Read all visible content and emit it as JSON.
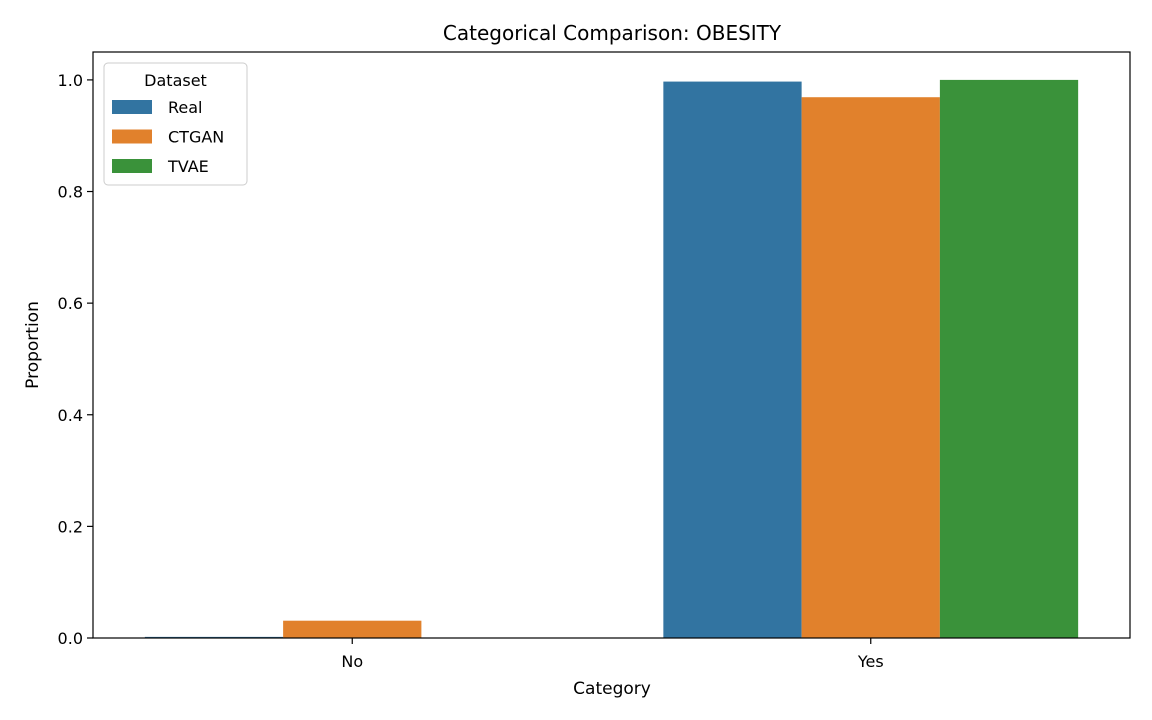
{
  "chart_data": {
    "type": "bar",
    "title": "Categorical Comparison: OBESITY",
    "xlabel": "Category",
    "ylabel": "Proportion",
    "categories": [
      "No",
      "Yes"
    ],
    "series": [
      {
        "name": "Real",
        "values": [
          0.002,
          0.997
        ],
        "color": "#3274a1"
      },
      {
        "name": "CTGAN",
        "values": [
          0.031,
          0.969
        ],
        "color": "#e1812c"
      },
      {
        "name": "TVAE",
        "values": [
          0.0,
          1.0
        ],
        "color": "#3a923a"
      }
    ],
    "ylim": [
      0,
      1.05
    ],
    "yticks": [
      0.0,
      0.2,
      0.4,
      0.6,
      0.8,
      1.0
    ],
    "ytick_labels": [
      "0.0",
      "0.2",
      "0.4",
      "0.6",
      "0.8",
      "1.0"
    ],
    "grid": false,
    "legend": {
      "title": "Dataset",
      "placement": "top-left"
    }
  }
}
